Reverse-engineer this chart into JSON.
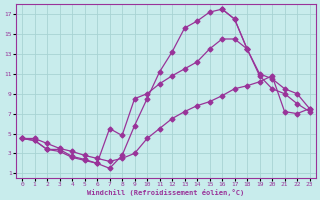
{
  "xlabel": "Windchill (Refroidissement éolien,°C)",
  "bg_color": "#c8ecec",
  "grid_color": "#a8d4d4",
  "line_color": "#993399",
  "xlim": [
    -0.5,
    23.5
  ],
  "ylim": [
    0.5,
    18
  ],
  "xticks": [
    0,
    1,
    2,
    3,
    4,
    5,
    6,
    7,
    8,
    9,
    10,
    11,
    12,
    13,
    14,
    15,
    16,
    17,
    18,
    19,
    20,
    21,
    22,
    23
  ],
  "yticks": [
    1,
    3,
    5,
    7,
    9,
    11,
    13,
    15,
    17
  ],
  "curve1_x": [
    0,
    1,
    2,
    3,
    4,
    5,
    6,
    7,
    8,
    9,
    10,
    11,
    12,
    13,
    14,
    15,
    16,
    17,
    18,
    19,
    20,
    21,
    22,
    23
  ],
  "curve1_y": [
    4.5,
    4.3,
    3.4,
    3.4,
    2.7,
    2.4,
    2.0,
    1.5,
    2.8,
    5.8,
    8.5,
    11.2,
    13.2,
    15.6,
    16.3,
    17.2,
    17.5,
    16.5,
    13.5,
    null,
    null,
    null,
    null,
    null
  ],
  "curve2_x": [
    0,
    1,
    2,
    3,
    4,
    5,
    6,
    7,
    8,
    9,
    10,
    11,
    12,
    13,
    14,
    15,
    16,
    17,
    18,
    19,
    20,
    21,
    22,
    23
  ],
  "curve2_y": [
    4.5,
    4.3,
    3.4,
    3.2,
    2.6,
    2.3,
    2.0,
    5.5,
    4.8,
    8.5,
    9.0,
    10.0,
    10.8,
    11.5,
    12.2,
    13.5,
    14.5,
    14.5,
    13.5,
    11.0,
    10.5,
    9.5,
    9.0,
    7.5
  ],
  "curve3_x": [
    0,
    1,
    2,
    3,
    4,
    5,
    6,
    7,
    8,
    9,
    10,
    11,
    12,
    13,
    14,
    15,
    16,
    17,
    18,
    19,
    20,
    21,
    22,
    23
  ],
  "curve3_y": [
    4.5,
    4.5,
    4.0,
    3.5,
    3.2,
    2.8,
    2.5,
    2.2,
    2.5,
    3.0,
    4.5,
    5.5,
    6.5,
    7.2,
    7.8,
    8.2,
    8.8,
    9.5,
    9.8,
    10.2,
    10.8,
    7.2,
    7.0,
    7.5
  ],
  "curve4_x": [
    16,
    17,
    18,
    19,
    20,
    21,
    22,
    23
  ],
  "curve4_y": [
    17.5,
    16.5,
    13.5,
    10.8,
    9.5,
    9.0,
    8.0,
    7.2
  ]
}
